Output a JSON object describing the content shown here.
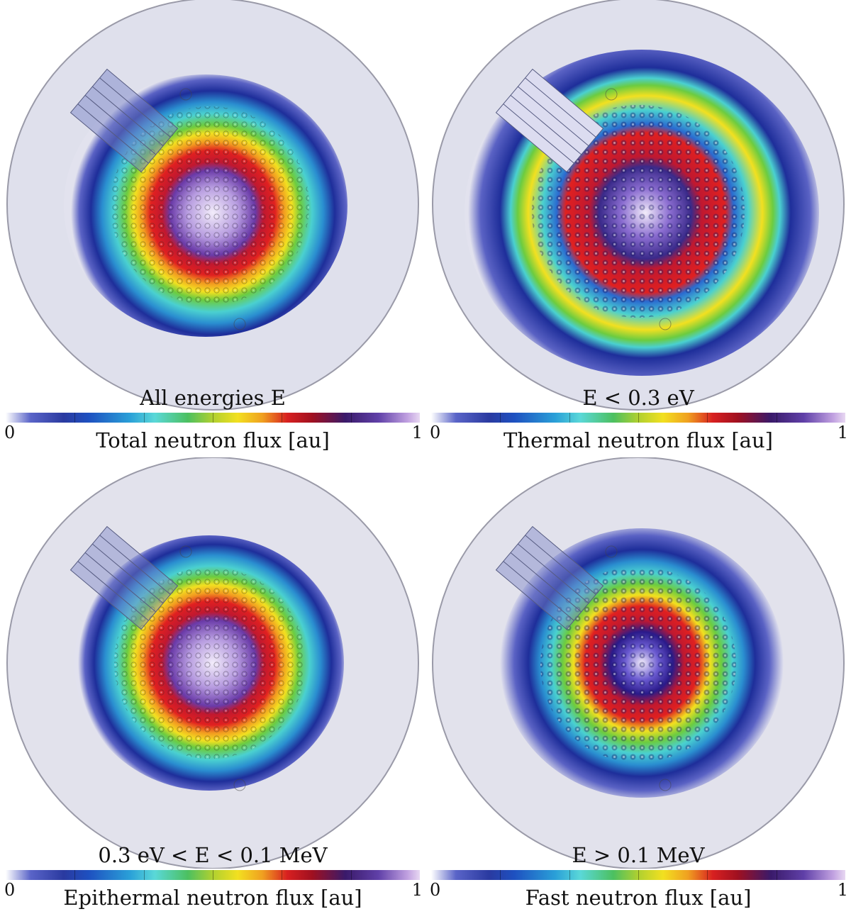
{
  "panels": [
    {
      "id": "total",
      "energy_label": "All energies E",
      "flux_label": "Total neutron flux [au]",
      "scale_min": "0",
      "scale_max": "1"
    },
    {
      "id": "thermal",
      "energy_label": "E < 0.3 eV",
      "flux_label": "Thermal neutron flux [au]",
      "scale_min": "0",
      "scale_max": "1"
    },
    {
      "id": "epithermal",
      "energy_label": "0.3 eV < E < 0.1 MeV",
      "flux_label": "Epithermal neutron flux [au]",
      "scale_min": "0",
      "scale_max": "1"
    },
    {
      "id": "fast",
      "energy_label": "E > 0.1 MeV",
      "flux_label": "Fast neutron flux [au]",
      "scale_min": "0",
      "scale_max": "1"
    }
  ],
  "colormap": [
    "#e4e4ee",
    "#5a64c8",
    "#23309a",
    "#2aa0d8",
    "#5ad8d8",
    "#4cc060",
    "#f2e020",
    "#f0a020",
    "#d82020",
    "#3a1a6a",
    "#b090e0",
    "#f4eefa"
  ]
}
